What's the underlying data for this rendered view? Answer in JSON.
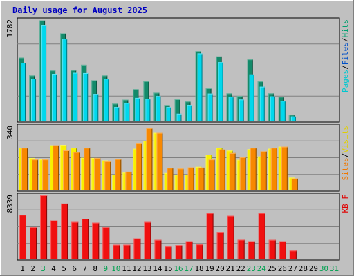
{
  "chart_data": {
    "type": "bar",
    "title": "Daily usage for August 2025",
    "categories": [
      "1",
      "2",
      "3",
      "4",
      "5",
      "6",
      "7",
      "8",
      "9",
      "10",
      "11",
      "12",
      "13",
      "14",
      "15",
      "16",
      "17",
      "18",
      "19",
      "20",
      "21",
      "22",
      "23",
      "24",
      "25",
      "26",
      "27",
      "28",
      "29",
      "30",
      "31"
    ],
    "weekend_days": [
      "3",
      "9",
      "10",
      "16",
      "17",
      "23",
      "24",
      "30",
      "31"
    ],
    "panels": [
      {
        "id": "hits-files-pages",
        "max_label": "1782",
        "ymax": 1782,
        "legend": [
          {
            "text": "Pages",
            "color": "#00c8d0"
          },
          {
            "text": "/",
            "color": "#000000"
          },
          {
            "text": "Files",
            "color": "#0050c8"
          },
          {
            "text": "/",
            "color": "#000000"
          },
          {
            "text": "Hits",
            "color": "#00a070"
          }
        ],
        "series": [
          {
            "name": "Hits",
            "color": "#138a6a",
            "values": [
              1122,
              808,
              1775,
              895,
              1546,
              901,
              995,
              722,
              808,
              311,
              382,
              566,
              705,
              504,
              287,
              388,
              349,
              1233,
              582,
              1141,
              493,
              448,
              1089,
              702,
              493,
              432,
              117,
              0,
              0,
              0,
              0
            ]
          },
          {
            "name": "Files",
            "color": "#1848c8",
            "values": [
              1030,
              751,
              1695,
              836,
              1452,
              854,
              849,
              482,
              749,
              252,
              323,
              413,
              398,
              445,
              252,
              135,
              289,
              1195,
              489,
              1039,
              434,
              384,
              826,
              610,
              440,
              361,
              88,
              0,
              0,
              0,
              0
            ]
          },
          {
            "name": "Pages",
            "color": "#00d8ec",
            "values": [
              1030,
              751,
              1695,
              836,
              1452,
              854,
              849,
              482,
              749,
              252,
              323,
              413,
              398,
              445,
              252,
              135,
              289,
              1195,
              489,
              1039,
              434,
              384,
              826,
              610,
              440,
              361,
              88,
              0,
              0,
              0,
              0
            ]
          }
        ]
      },
      {
        "id": "visits-sites",
        "max_label": "340",
        "ymax": 340,
        "legend": [
          {
            "text": "Sites",
            "color": "#f07800"
          },
          {
            "text": "/",
            "color": "#000000"
          },
          {
            "text": "Visits",
            "color": "#e0d000"
          }
        ],
        "series": [
          {
            "name": "Visits",
            "color": "#f8f000",
            "values": [
              226,
              172,
              164,
              239,
              241,
              226,
              173,
              172,
              159,
              84,
              94,
              221,
              263,
              305,
              92,
              83,
              84,
              125,
              190,
              226,
              211,
              162,
              218,
              180,
              221,
              232,
              68,
              0,
              0,
              0,
              0
            ]
          },
          {
            "name": "Sites",
            "color": "#f88800",
            "values": [
              226,
              164,
              164,
              239,
              212,
              203,
              226,
              172,
              154,
              166,
              99,
              252,
              330,
              305,
              120,
              116,
              122,
              121,
              164,
              217,
              198,
              176,
              226,
              207,
              226,
              232,
              64,
              0,
              0,
              0,
              0
            ]
          }
        ]
      },
      {
        "id": "kbytes",
        "max_label": "8339",
        "ymax": 8339,
        "legend": [
          {
            "text": "KB F",
            "color": "#e00000"
          }
        ],
        "series": [
          {
            "name": "KB F",
            "color": "#f01010",
            "values": [
              5810,
              4208,
              8339,
              5048,
              7270,
              4880,
              5290,
              4790,
              4190,
              1920,
              1920,
              2730,
              4880,
              2540,
              1690,
              1860,
              2370,
              1960,
              6030,
              3570,
              5690,
              2560,
              2370,
              6030,
              2540,
              2370,
              1140,
              0,
              0,
              0,
              0
            ]
          }
        ]
      }
    ]
  }
}
